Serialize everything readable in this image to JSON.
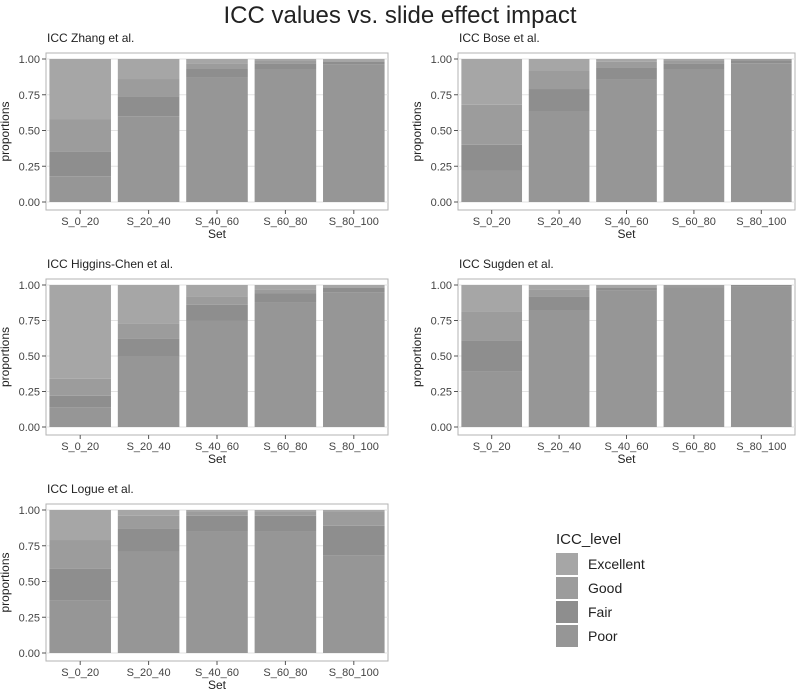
{
  "title": "ICC values vs. slide effect impact",
  "colors": {
    "Excellent": "#a6a6a6",
    "Good": "#9c9c9c",
    "Fair": "#8e8e8e",
    "Poor": "#969696",
    "panel_border": "#b3b3b3",
    "grid": "#e3e3e3"
  },
  "chart_data": [
    {
      "type": "bar",
      "stacked": true,
      "title": "ICC Zhang et al.",
      "xlabel": "Set",
      "ylabel": "proportions",
      "ylim": [
        0,
        1
      ],
      "yticks": [
        "0.00",
        "0.25",
        "0.50",
        "0.75",
        "1.00"
      ],
      "categories": [
        "S_0_20",
        "S_20_40",
        "S_40_60",
        "S_60_80",
        "S_80_100"
      ],
      "series": [
        {
          "name": "Poor",
          "values": [
            0.18,
            0.6,
            0.87,
            0.93,
            0.96
          ]
        },
        {
          "name": "Fair",
          "values": [
            0.17,
            0.14,
            0.06,
            0.04,
            0.02
          ]
        },
        {
          "name": "Good",
          "values": [
            0.23,
            0.12,
            0.04,
            0.02,
            0.01
          ]
        },
        {
          "name": "Excellent",
          "values": [
            0.42,
            0.14,
            0.03,
            0.01,
            0.01
          ]
        }
      ]
    },
    {
      "type": "bar",
      "stacked": true,
      "title": "ICC Bose et al.",
      "xlabel": "Set",
      "ylabel": "proportions",
      "ylim": [
        0,
        1
      ],
      "yticks": [
        "0.00",
        "0.25",
        "0.50",
        "0.75",
        "1.00"
      ],
      "categories": [
        "S_0_20",
        "S_20_40",
        "S_40_60",
        "S_60_80",
        "S_80_100"
      ],
      "series": [
        {
          "name": "Poor",
          "values": [
            0.22,
            0.63,
            0.86,
            0.93,
            0.97
          ]
        },
        {
          "name": "Fair",
          "values": [
            0.18,
            0.16,
            0.08,
            0.04,
            0.02
          ]
        },
        {
          "name": "Good",
          "values": [
            0.28,
            0.13,
            0.04,
            0.02,
            0.01
          ]
        },
        {
          "name": "Excellent",
          "values": [
            0.32,
            0.08,
            0.02,
            0.01,
            0.0
          ]
        }
      ]
    },
    {
      "type": "bar",
      "stacked": true,
      "title": "ICC Higgins-Chen et al.",
      "xlabel": "Set",
      "ylabel": "proportions",
      "ylim": [
        0,
        1
      ],
      "yticks": [
        "0.00",
        "0.25",
        "0.50",
        "0.75",
        "1.00"
      ],
      "categories": [
        "S_0_20",
        "S_20_40",
        "S_40_60",
        "S_60_80",
        "S_80_100"
      ],
      "series": [
        {
          "name": "Poor",
          "values": [
            0.14,
            0.5,
            0.75,
            0.88,
            0.95
          ]
        },
        {
          "name": "Fair",
          "values": [
            0.08,
            0.12,
            0.11,
            0.06,
            0.03
          ]
        },
        {
          "name": "Good",
          "values": [
            0.12,
            0.11,
            0.06,
            0.03,
            0.01
          ]
        },
        {
          "name": "Excellent",
          "values": [
            0.66,
            0.27,
            0.08,
            0.03,
            0.01
          ]
        }
      ]
    },
    {
      "type": "bar",
      "stacked": true,
      "title": "ICC Sugden et al.",
      "xlabel": "Set",
      "ylabel": "proportions",
      "ylim": [
        0,
        1
      ],
      "yticks": [
        "0.00",
        "0.25",
        "0.50",
        "0.75",
        "1.00"
      ],
      "categories": [
        "S_0_20",
        "S_20_40",
        "S_40_60",
        "S_60_80",
        "S_80_100"
      ],
      "series": [
        {
          "name": "Poor",
          "values": [
            0.39,
            0.82,
            0.96,
            0.98,
            0.99
          ]
        },
        {
          "name": "Fair",
          "values": [
            0.22,
            0.1,
            0.02,
            0.01,
            0.01
          ]
        },
        {
          "name": "Good",
          "values": [
            0.2,
            0.05,
            0.01,
            0.01,
            0.0
          ]
        },
        {
          "name": "Excellent",
          "values": [
            0.19,
            0.03,
            0.01,
            0.0,
            0.0
          ]
        }
      ]
    },
    {
      "type": "bar",
      "stacked": true,
      "title": "ICC Logue et al.",
      "xlabel": "Set",
      "ylabel": "proportions",
      "ylim": [
        0,
        1
      ],
      "yticks": [
        "0.00",
        "0.25",
        "0.50",
        "0.75",
        "1.00"
      ],
      "categories": [
        "S_0_20",
        "S_20_40",
        "S_40_60",
        "S_60_80",
        "S_80_100"
      ],
      "series": [
        {
          "name": "Poor",
          "values": [
            0.37,
            0.71,
            0.85,
            0.85,
            0.68
          ]
        },
        {
          "name": "Fair",
          "values": [
            0.22,
            0.16,
            0.11,
            0.11,
            0.21
          ]
        },
        {
          "name": "Good",
          "values": [
            0.2,
            0.09,
            0.03,
            0.03,
            0.1
          ]
        },
        {
          "name": "Excellent",
          "values": [
            0.21,
            0.04,
            0.01,
            0.01,
            0.01
          ]
        }
      ]
    }
  ],
  "legend": {
    "title": "ICC_level",
    "items": [
      "Excellent",
      "Good",
      "Fair",
      "Poor"
    ]
  }
}
